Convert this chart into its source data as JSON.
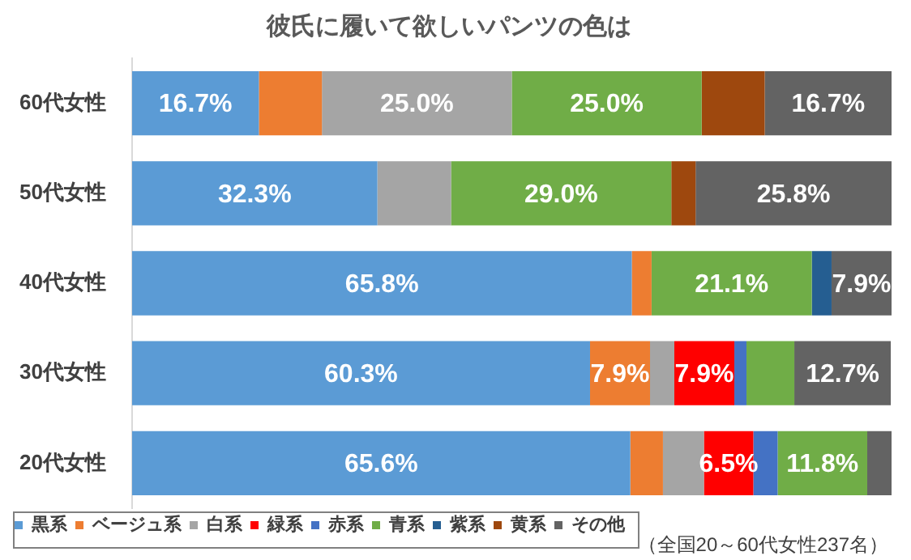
{
  "chart_data": {
    "type": "bar",
    "orientation": "horizontal",
    "stacked": true,
    "title": "彼氏に履いて欲しいパンツの色は",
    "categories": [
      "60代女性",
      "50代女性",
      "40代女性",
      "30代女性",
      "20代女性"
    ],
    "xlim": [
      0,
      100
    ],
    "tick_labels": "y",
    "legend": "bottom",
    "annotations": [
      "（全国20～60代女性237名）"
    ],
    "series": [
      {
        "name": "黒系",
        "color": "#5b9bd5",
        "values": [
          16.7,
          32.3,
          65.8,
          60.3,
          65.6
        ],
        "value_labels": [
          "16.7%",
          "32.3%",
          "65.8%",
          "60.3%",
          "65.6%"
        ]
      },
      {
        "name": "ベージュ系",
        "color": "#ed7d31",
        "values": [
          8.3,
          null,
          2.6,
          7.9,
          4.3
        ],
        "value_labels": [
          null,
          null,
          null,
          "7.9%",
          null
        ]
      },
      {
        "name": "白系",
        "color": "#a5a5a5",
        "values": [
          25.0,
          9.7,
          null,
          3.2,
          5.4
        ],
        "value_labels": [
          "25.0%",
          null,
          null,
          null,
          null
        ]
      },
      {
        "name": "緑系",
        "color": "#ff0000",
        "values": [
          null,
          null,
          null,
          7.9,
          6.5
        ],
        "value_labels": [
          null,
          null,
          null,
          "7.9%",
          "6.5%"
        ]
      },
      {
        "name": "赤系",
        "color": "#4472c4",
        "values": [
          null,
          null,
          null,
          1.6,
          3.2
        ],
        "value_labels": [
          null,
          null,
          null,
          null,
          null
        ]
      },
      {
        "name": "青系",
        "color": "#70ad47",
        "values": [
          25.0,
          29.0,
          21.1,
          6.3,
          11.8
        ],
        "value_labels": [
          "25.0%",
          "29.0%",
          "21.1%",
          null,
          "11.8%"
        ]
      },
      {
        "name": "紫系",
        "color": "#255e91",
        "values": [
          null,
          null,
          2.6,
          null,
          null
        ],
        "value_labels": [
          null,
          null,
          null,
          null,
          null
        ]
      },
      {
        "name": "黄系",
        "color": "#9e480e",
        "values": [
          8.3,
          3.2,
          null,
          null,
          null
        ],
        "value_labels": [
          null,
          null,
          null,
          null,
          null
        ]
      },
      {
        "name": "その他",
        "color": "#636363",
        "values": [
          16.7,
          25.8,
          7.9,
          12.7,
          3.2
        ],
        "value_labels": [
          "16.7%",
          "25.8%",
          "7.9%",
          "12.7%",
          null
        ]
      }
    ]
  }
}
